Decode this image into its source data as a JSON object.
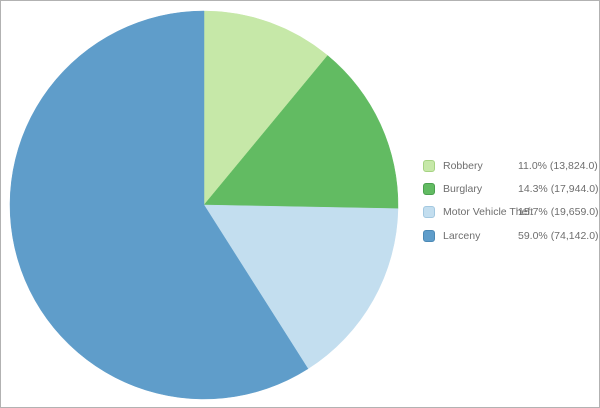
{
  "frame": {
    "background": "#ffffff",
    "border_color": "#b2b2b2"
  },
  "chart_data": {
    "type": "pie",
    "title": "",
    "start_angle_deg": 0,
    "direction": "clockwise",
    "legend_position": "right",
    "slices": [
      {
        "label": "Robbery",
        "percent": 11.0,
        "value": 13824.0,
        "color": "#c6e8a8"
      },
      {
        "label": "Burglary",
        "percent": 14.3,
        "value": 17944.0,
        "color": "#62bb62"
      },
      {
        "label": "Motor Vehicle Theft",
        "percent": 15.7,
        "value": 19659.0,
        "color": "#c3deef"
      },
      {
        "label": "Larceny",
        "percent": 59.0,
        "value": 74142.0,
        "color": "#5f9dca"
      }
    ]
  },
  "legend": {
    "items": [
      {
        "label": "Robbery",
        "value_text": "11.0% (13,824.0)",
        "swatch_color": "#c6e8a8",
        "swatch_border": "#a6d383"
      },
      {
        "label": "Burglary",
        "value_text": "14.3% (17,944.0)",
        "swatch_color": "#62bb62",
        "swatch_border": "#4ba04f"
      },
      {
        "label": "Motor Vehicle Theft",
        "value_text": "15.7% (19,659.0)",
        "swatch_color": "#c3deef",
        "swatch_border": "#a3c8e0"
      },
      {
        "label": "Larceny",
        "value_text": "59.0% (74,142.0)",
        "swatch_color": "#5f9dca",
        "swatch_border": "#4c89b5"
      }
    ]
  }
}
